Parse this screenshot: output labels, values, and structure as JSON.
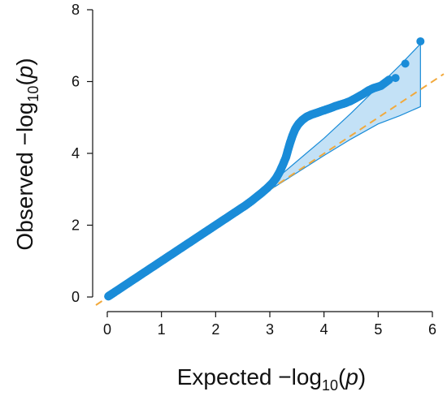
{
  "chart_data": {
    "type": "scatter",
    "title": "",
    "xlabel_main": "Expected",
    "xlabel_sub": "10",
    "xlabel_prefix": "−log",
    "xlabel_paren_open": "(",
    "xlabel_var": "p",
    "xlabel_paren_close": ")",
    "ylabel_main": "Observed",
    "ylabel_sub": "10",
    "ylabel_prefix": "−log",
    "ylabel_paren_open": "(",
    "ylabel_var": "p",
    "ylabel_paren_close": ")",
    "xlim": [
      0,
      6
    ],
    "ylim": [
      0,
      8
    ],
    "x_ticks": [
      0,
      1,
      2,
      3,
      4,
      5,
      6
    ],
    "y_ticks": [
      0,
      2,
      4,
      6,
      8
    ],
    "grid": false,
    "legend": "none",
    "colors": {
      "points": "#1a8cd8",
      "band_fill": "#b9dcf4",
      "band_edge": "#1a8cd8",
      "reference_line": "#f2a93b",
      "axis": "#111111"
    },
    "reference_line": {
      "x": [
        0,
        6
      ],
      "y": [
        0,
        6
      ],
      "style": "dashed"
    },
    "confidence_band": {
      "upper": [
        [
          2.6,
          2.64
        ],
        [
          3.0,
          3.14
        ],
        [
          3.5,
          3.78
        ],
        [
          4.0,
          4.42
        ],
        [
          4.5,
          5.12
        ],
        [
          5.0,
          5.86
        ],
        [
          5.4,
          6.45
        ],
        [
          5.78,
          7.05
        ]
      ],
      "lower": [
        [
          2.6,
          2.58
        ],
        [
          3.0,
          2.98
        ],
        [
          3.5,
          3.46
        ],
        [
          4.0,
          3.94
        ],
        [
          4.5,
          4.4
        ],
        [
          5.0,
          4.82
        ],
        [
          5.4,
          5.05
        ],
        [
          5.78,
          5.3
        ]
      ]
    },
    "points": [
      [
        0.02,
        0.02
      ],
      [
        0.08,
        0.08
      ],
      [
        0.15,
        0.15
      ],
      [
        0.25,
        0.25
      ],
      [
        0.35,
        0.35
      ],
      [
        0.45,
        0.45
      ],
      [
        0.55,
        0.55
      ],
      [
        0.65,
        0.65
      ],
      [
        0.75,
        0.75
      ],
      [
        0.85,
        0.85
      ],
      [
        0.95,
        0.95
      ],
      [
        1.05,
        1.05
      ],
      [
        1.15,
        1.15
      ],
      [
        1.25,
        1.25
      ],
      [
        1.35,
        1.35
      ],
      [
        1.45,
        1.45
      ],
      [
        1.55,
        1.55
      ],
      [
        1.65,
        1.65
      ],
      [
        1.75,
        1.75
      ],
      [
        1.85,
        1.85
      ],
      [
        1.95,
        1.95
      ],
      [
        2.05,
        2.05
      ],
      [
        2.15,
        2.15
      ],
      [
        2.25,
        2.25
      ],
      [
        2.35,
        2.35
      ],
      [
        2.45,
        2.45
      ],
      [
        2.55,
        2.55
      ],
      [
        2.65,
        2.66
      ],
      [
        2.75,
        2.78
      ],
      [
        2.85,
        2.9
      ],
      [
        2.95,
        3.03
      ],
      [
        3.05,
        3.18
      ],
      [
        3.12,
        3.32
      ],
      [
        3.18,
        3.48
      ],
      [
        3.24,
        3.68
      ],
      [
        3.3,
        3.9
      ],
      [
        3.34,
        4.12
      ],
      [
        3.38,
        4.32
      ],
      [
        3.42,
        4.5
      ],
      [
        3.47,
        4.68
      ],
      [
        3.53,
        4.82
      ],
      [
        3.6,
        4.93
      ],
      [
        3.68,
        5.02
      ],
      [
        3.77,
        5.08
      ],
      [
        3.87,
        5.13
      ],
      [
        3.98,
        5.19
      ],
      [
        4.1,
        5.25
      ],
      [
        4.22,
        5.32
      ],
      [
        4.35,
        5.38
      ],
      [
        4.48,
        5.45
      ],
      [
        4.6,
        5.55
      ],
      [
        4.72,
        5.65
      ],
      [
        4.82,
        5.75
      ],
      [
        4.92,
        5.82
      ],
      [
        5.05,
        5.88
      ],
      [
        5.2,
        6.05
      ],
      [
        5.32,
        6.1
      ],
      [
        5.5,
        6.5
      ],
      [
        5.78,
        7.12
      ]
    ]
  }
}
